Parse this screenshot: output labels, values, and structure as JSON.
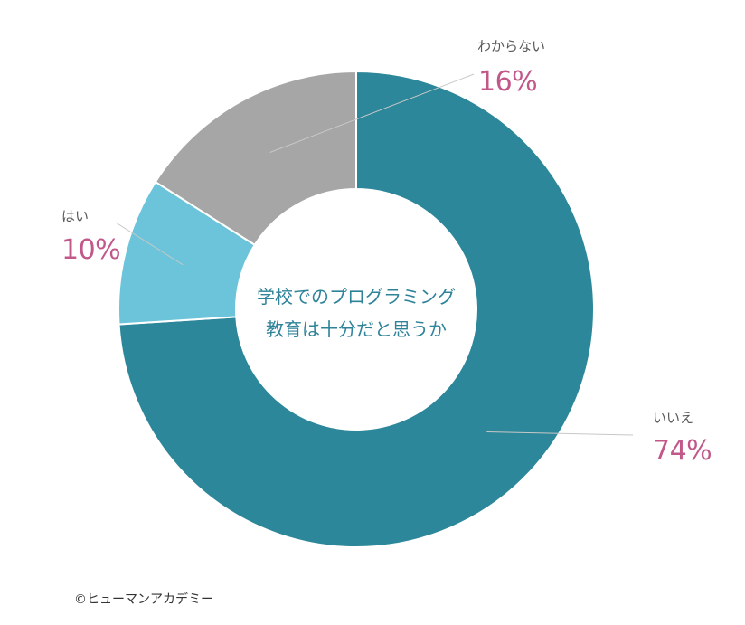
{
  "chart_data": {
    "type": "pie",
    "donut": true,
    "title_lines": [
      "学校でのプログラミング",
      "教育は十分だと思うか"
    ],
    "slices": [
      {
        "label": "いいえ",
        "value": 74,
        "value_label": "74%",
        "color": "#2b8799"
      },
      {
        "label": "はい",
        "value": 10,
        "value_label": "10%",
        "color": "#6bc4d9"
      },
      {
        "label": "わからない",
        "value": 16,
        "value_label": "16%",
        "color": "#a6a6a6"
      }
    ],
    "start": "12 o'clock",
    "direction": "clockwise",
    "legend": "none"
  },
  "credit": "©ヒューマンアカデミー"
}
